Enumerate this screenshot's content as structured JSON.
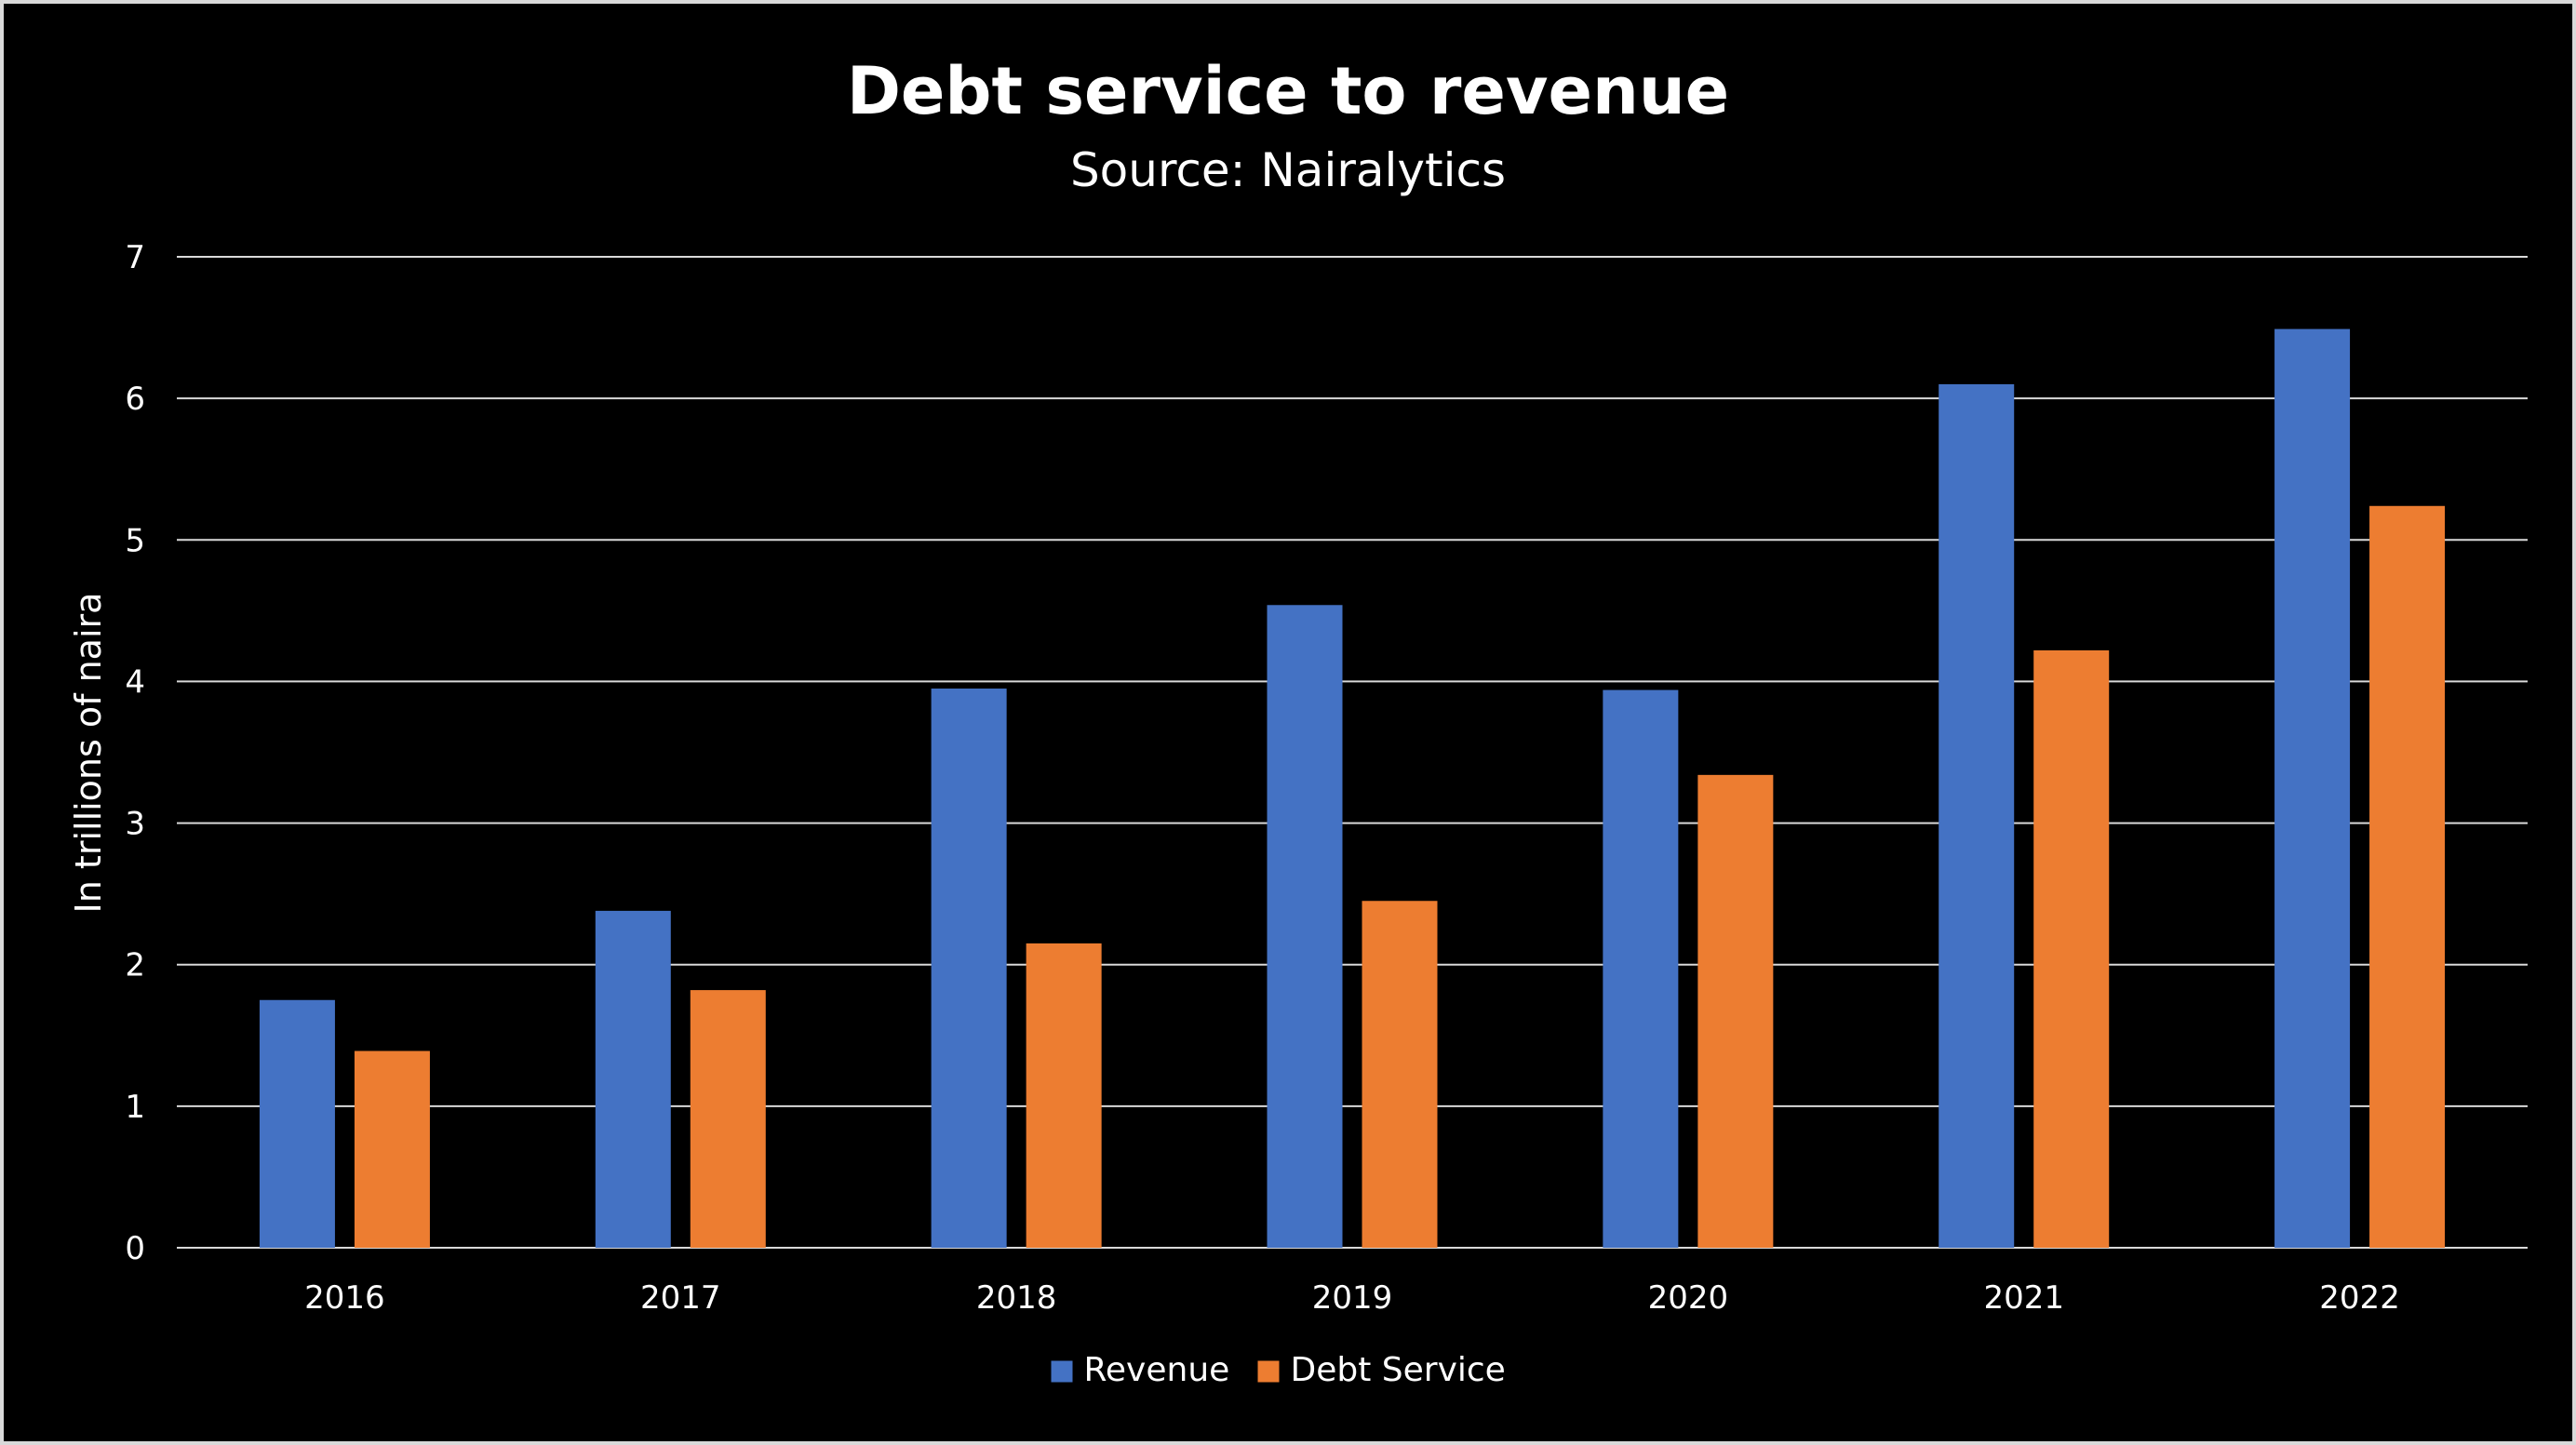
{
  "chart_data": {
    "type": "bar",
    "title": "Debt service to revenue",
    "subtitle": "Source: Nairalytics",
    "xlabel": "",
    "ylabel": "In trillions of naira",
    "ylim": [
      0,
      7
    ],
    "yticks": [
      0,
      1,
      2,
      3,
      4,
      5,
      6,
      7
    ],
    "grid": true,
    "legend_position": "bottom",
    "categories": [
      "2016",
      "2017",
      "2018",
      "2019",
      "2020",
      "2021",
      "2022"
    ],
    "series": [
      {
        "name": "Revenue",
        "color": "#4472c4",
        "values": [
          1.75,
          2.38,
          3.95,
          4.54,
          3.94,
          6.1,
          6.49
        ]
      },
      {
        "name": "Debt Service",
        "color": "#ed7d31",
        "values": [
          1.39,
          1.82,
          2.15,
          2.45,
          3.34,
          4.22,
          5.24
        ]
      }
    ]
  },
  "colors": {
    "background": "#000000",
    "gridline": "#d9d9d9",
    "text": "#ffffff"
  }
}
